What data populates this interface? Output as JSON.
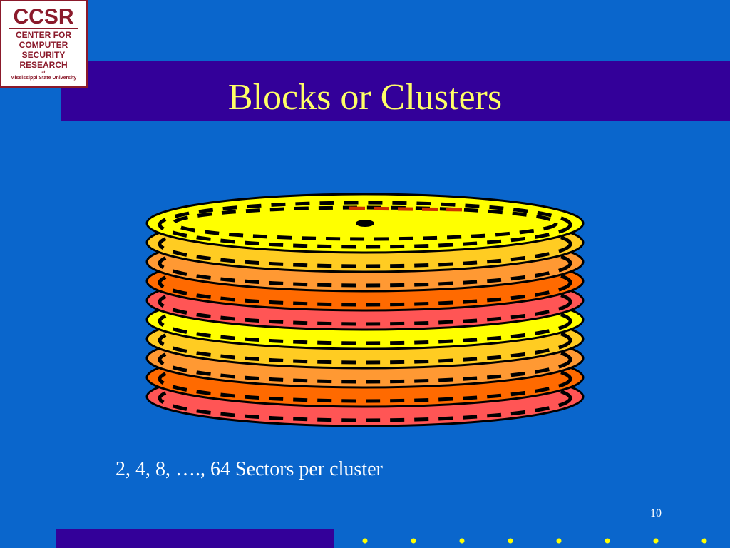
{
  "logo": {
    "acronym": "CCSR",
    "lines": [
      "CENTER FOR",
      "COMPUTER",
      "SECURITY",
      "RESEARCH"
    ],
    "at": "at",
    "university": "Mississippi State University"
  },
  "title": "Blocks or Clusters",
  "caption": "2, 4, 8, …., 64 Sectors per cluster",
  "page_number": "10"
}
